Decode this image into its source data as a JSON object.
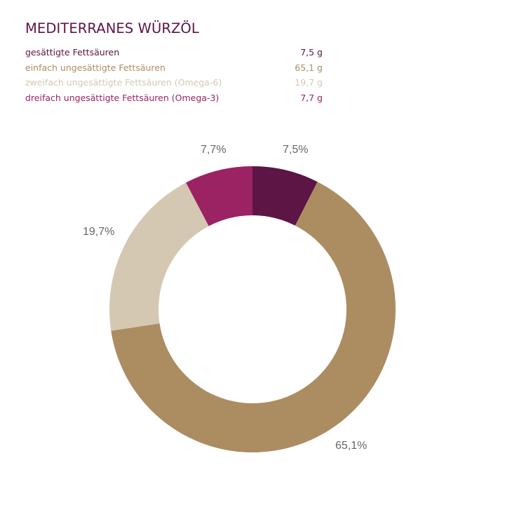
{
  "title": "MEDITERRANES WÜRZÖL",
  "legend": [
    {
      "label": "gesättigte Fettsäuren",
      "value": "7,5 g",
      "color": "#5c1545"
    },
    {
      "label": "einfach ungesättigte Fettsäuren",
      "value": "65,1 g",
      "color": "#ab8d61"
    },
    {
      "label": "zweifach ungesättigte Fettsäuren (Omega-6)",
      "value": "19,7 g",
      "color": "#d4c8b2"
    },
    {
      "label": "dreifach ungesättigte Fettsäuren (Omega-3)",
      "value": "7,7 g",
      "color": "#9b2263"
    }
  ],
  "chart_data": {
    "type": "pie",
    "variant": "donut",
    "title": "MEDITERRANES WÜRZÖL",
    "categories": [
      "gesättigte Fettsäuren",
      "einfach ungesättigte Fettsäuren",
      "zweifach ungesättigte Fettsäuren (Omega-6)",
      "dreifach ungesättigte Fettsäuren (Omega-3)"
    ],
    "values": [
      7.5,
      65.1,
      19.7,
      7.7
    ],
    "unit": "g",
    "labels": [
      "7,5%",
      "65,1%",
      "19,7%",
      "7,7%"
    ],
    "colors": [
      "#5c1545",
      "#ab8d61",
      "#d4c8b2",
      "#9b2263"
    ],
    "start_angle": "12 o'clock, clockwise",
    "legend_position": "top"
  }
}
